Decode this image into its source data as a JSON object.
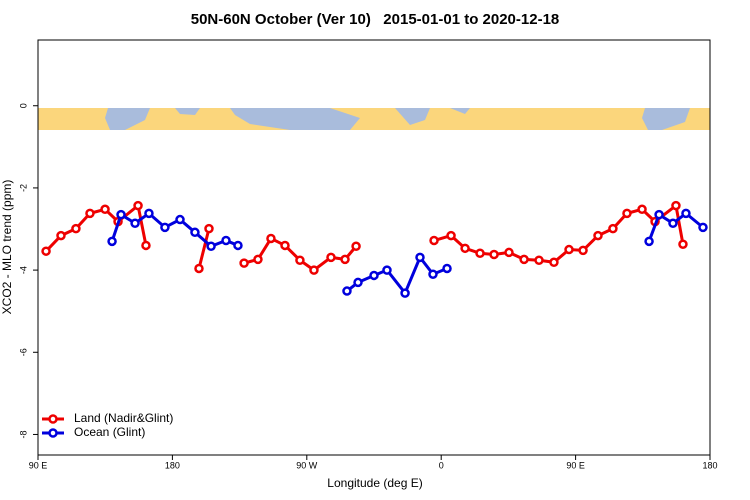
{
  "chart_data": {
    "type": "line",
    "title": "50N-60N October (Ver 10)   2015-01-01 to 2020-12-18",
    "x_label": "Longitude (deg E)",
    "y_label": "XCO2 - MLO trend (ppm)",
    "xlim": [
      90,
      540
    ],
    "ylim": [
      -8.5,
      1.6
    ],
    "xticks": [
      {
        "value": 90,
        "label": "90 E"
      },
      {
        "value": 180,
        "label": "180"
      },
      {
        "value": 270,
        "label": "90 W"
      },
      {
        "value": 360,
        "label": "0"
      },
      {
        "value": 450,
        "label": "90 E"
      },
      {
        "value": 540,
        "label": "180"
      }
    ],
    "yticks": [
      0,
      -2,
      -4,
      -6,
      -8
    ],
    "legend": "bottomleft",
    "series": [
      {
        "name": "Land (Nadir&Glint)",
        "color": "#ee0000",
        "x": [
          95.4,
          105.4,
          115.4,
          124.8,
          134.9,
          143.6,
          157.0,
          162.3,
          null,
          197.8,
          204.5,
          null,
          228.0,
          237.3,
          246.0,
          255.4,
          265.4,
          274.8,
          286.2,
          295.6,
          303.0,
          null,
          355.2,
          366.6,
          376.0,
          386.0,
          395.4,
          405.4,
          415.5,
          425.5,
          435.5,
          445.6,
          455.0,
          465.0,
          475.0,
          484.4,
          494.5,
          503.2,
          517.2,
          521.9
        ],
        "values": [
          -3.54,
          -3.16,
          -2.99,
          -2.62,
          -2.52,
          -2.82,
          -2.43,
          -3.4,
          null,
          -3.96,
          -2.99,
          null,
          -3.83,
          -3.74,
          -3.23,
          -3.4,
          -3.76,
          -4.0,
          -3.69,
          -3.74,
          -3.42,
          null,
          -3.28,
          -3.16,
          -3.47,
          -3.59,
          -3.62,
          -3.57,
          -3.74,
          -3.76,
          -3.81,
          -3.5,
          -3.52,
          -3.16,
          -2.99,
          -2.62,
          -2.52,
          -2.82,
          -2.43,
          -3.37
        ]
      },
      {
        "name": "Ocean (Glint)",
        "color": "#0000dd",
        "x": [
          139.6,
          145.6,
          155.0,
          164.3,
          175.0,
          185.1,
          195.1,
          205.9,
          215.9,
          223.9,
          null,
          296.9,
          304.3,
          315.0,
          323.7,
          335.8,
          345.8,
          354.5,
          363.9,
          null,
          499.2,
          505.9,
          515.2,
          523.9,
          535.3
        ],
        "values": [
          -3.3,
          -2.65,
          -2.86,
          -2.62,
          -2.96,
          -2.77,
          -3.08,
          -3.42,
          -3.28,
          -3.4,
          null,
          -4.51,
          -4.3,
          -4.13,
          -4.0,
          -4.56,
          -3.69,
          -4.1,
          -3.96,
          null,
          -3.3,
          -2.65,
          -2.86,
          -2.62,
          -2.96
        ]
      }
    ]
  }
}
